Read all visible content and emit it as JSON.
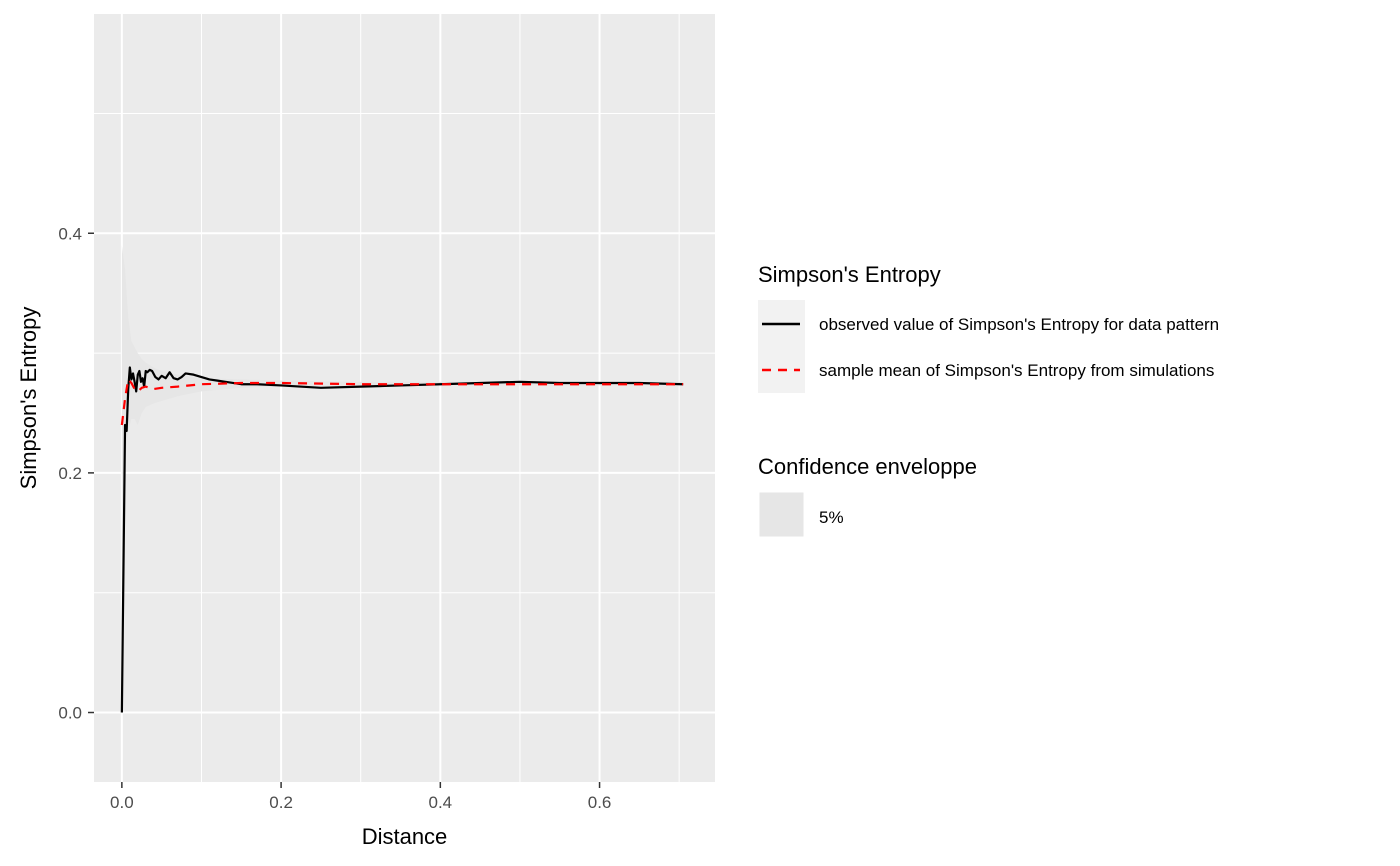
{
  "chart_data": {
    "type": "line",
    "title": "",
    "xlabel": "Distance",
    "ylabel": "Simpson's Entropy",
    "xlim": [
      -0.035,
      0.745
    ],
    "ylim": [
      -0.058,
      0.583
    ],
    "x_ticks": [
      0.0,
      0.2,
      0.4,
      0.6
    ],
    "x_tick_labels": [
      "0.0",
      "0.2",
      "0.4",
      "0.6"
    ],
    "y_ticks": [
      0.0,
      0.2,
      0.4
    ],
    "y_tick_labels": [
      "0.0",
      "0.2",
      "0.4"
    ],
    "grid": true,
    "legend_position": "right",
    "legends": [
      {
        "title": "Simpson's Entropy",
        "entries": [
          "observed value of Simpson's Entropy for data pattern",
          "sample mean of Simpson's Entropy from simulations"
        ]
      },
      {
        "title": "Confidence enveloppe",
        "entries": [
          "5%"
        ]
      }
    ],
    "series": [
      {
        "name": "observed value of Simpson's Entropy for data pattern",
        "color": "#000000",
        "dash": "solid",
        "x": [
          0.0,
          0.004,
          0.006,
          0.008,
          0.01,
          0.012,
          0.014,
          0.016,
          0.018,
          0.02,
          0.022,
          0.024,
          0.026,
          0.028,
          0.03,
          0.032,
          0.035,
          0.038,
          0.042,
          0.046,
          0.05,
          0.055,
          0.06,
          0.065,
          0.07,
          0.075,
          0.08,
          0.09,
          0.1,
          0.11,
          0.12,
          0.13,
          0.15,
          0.17,
          0.2,
          0.25,
          0.3,
          0.35,
          0.4,
          0.45,
          0.5,
          0.55,
          0.6,
          0.65,
          0.705
        ],
        "y": [
          0.0,
          0.24,
          0.235,
          0.27,
          0.288,
          0.278,
          0.283,
          0.276,
          0.268,
          0.282,
          0.285,
          0.276,
          0.279,
          0.272,
          0.285,
          0.284,
          0.286,
          0.285,
          0.28,
          0.278,
          0.281,
          0.279,
          0.284,
          0.279,
          0.278,
          0.28,
          0.283,
          0.282,
          0.28,
          0.278,
          0.277,
          0.276,
          0.274,
          0.274,
          0.273,
          0.271,
          0.272,
          0.273,
          0.274,
          0.275,
          0.276,
          0.275,
          0.275,
          0.275,
          0.274
        ]
      },
      {
        "name": "sample mean of Simpson's Entropy from simulations",
        "color": "#ff0000",
        "dash": "dashed",
        "x": [
          0.0,
          0.004,
          0.008,
          0.012,
          0.016,
          0.02,
          0.025,
          0.03,
          0.04,
          0.05,
          0.07,
          0.1,
          0.15,
          0.2,
          0.3,
          0.4,
          0.5,
          0.6,
          0.705
        ],
        "y": [
          0.24,
          0.262,
          0.278,
          0.275,
          0.27,
          0.268,
          0.271,
          0.272,
          0.27,
          0.271,
          0.272,
          0.274,
          0.275,
          0.275,
          0.274,
          0.274,
          0.274,
          0.274,
          0.274
        ]
      }
    ],
    "envelope": {
      "name": "5%",
      "color": "#e6e6e6",
      "x": [
        0.0,
        0.004,
        0.008,
        0.012,
        0.016,
        0.02,
        0.025,
        0.03,
        0.04,
        0.05,
        0.07,
        0.1,
        0.15,
        0.2,
        0.3,
        0.4,
        0.5,
        0.6,
        0.705
      ],
      "lower": [
        0.0,
        0.21,
        0.235,
        0.245,
        0.245,
        0.24,
        0.25,
        0.255,
        0.258,
        0.26,
        0.264,
        0.268,
        0.271,
        0.272,
        0.273,
        0.273,
        0.273,
        0.273,
        0.273
      ],
      "upper": [
        0.39,
        0.37,
        0.33,
        0.31,
        0.305,
        0.3,
        0.295,
        0.292,
        0.288,
        0.285,
        0.282,
        0.279,
        0.278,
        0.277,
        0.276,
        0.276,
        0.276,
        0.276,
        0.276
      ]
    }
  },
  "colors": {
    "panel_background": "#ebebeb",
    "grid_major": "#ffffff",
    "observed_line": "#000000",
    "mean_line": "#ff0000",
    "envelope_fill": "#e6e6e6"
  }
}
